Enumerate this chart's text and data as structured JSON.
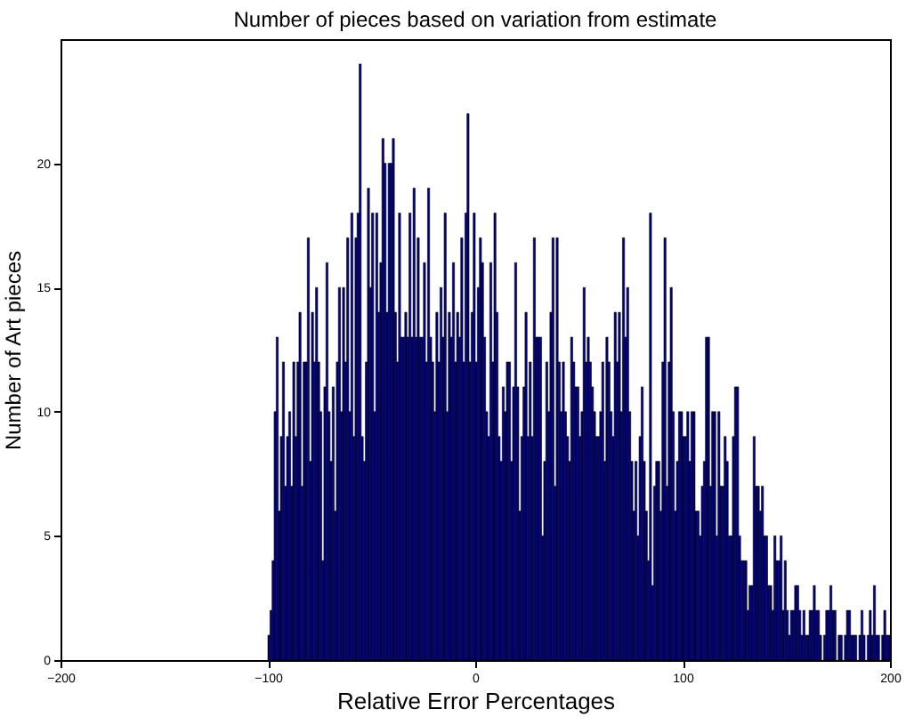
{
  "chart_data": {
    "type": "histogram",
    "title": "Number of pieces based on variation from estimate",
    "xlabel": "Relative Error Percentages",
    "ylabel": "Number of Art pieces",
    "color": "#00008b",
    "xlim": [
      -200,
      200
    ],
    "xticks": [
      -200,
      -100,
      0,
      100,
      200
    ],
    "ylim": [
      0,
      25
    ],
    "yticks": [
      0,
      5,
      10,
      15,
      20
    ],
    "bins": [
      -100,
      -99,
      -98,
      -97,
      -96,
      -95,
      -94,
      -93,
      -92,
      -91,
      -90,
      -89,
      -88,
      -87,
      -86,
      -85,
      -84,
      -83,
      -82,
      -81,
      -80,
      -79,
      -78,
      -77,
      -76,
      -75,
      -74,
      -73,
      -72,
      -71,
      -70,
      -69,
      -68,
      -67,
      -66,
      -65,
      -64,
      -63,
      -62,
      -61,
      -60,
      -59,
      -58,
      -57,
      -56,
      -55,
      -54,
      -53,
      -52,
      -51,
      -50,
      -49,
      -48,
      -47,
      -46,
      -45,
      -44,
      -43,
      -42,
      -41,
      -40,
      -39,
      -38,
      -37,
      -36,
      -35,
      -34,
      -33,
      -32,
      -31,
      -30,
      -29,
      -28,
      -27,
      -26,
      -25,
      -24,
      -23,
      -22,
      -21,
      -20,
      -19,
      -18,
      -17,
      -16,
      -15,
      -14,
      -13,
      -12,
      -11,
      -10,
      -9,
      -8,
      -7,
      -6,
      -5,
      -4,
      -3,
      -2,
      -1,
      0,
      1,
      2,
      3,
      4,
      5,
      6,
      7,
      8,
      9,
      10,
      11,
      12,
      13,
      14,
      15,
      16,
      17,
      18,
      19,
      20,
      21,
      22,
      23,
      24,
      25,
      26,
      27,
      28,
      29,
      30,
      31,
      32,
      33,
      34,
      35,
      36,
      37,
      38,
      39,
      40,
      41,
      42,
      43,
      44,
      45,
      46,
      47,
      48,
      49,
      50,
      51,
      52,
      53,
      54,
      55,
      56,
      57,
      58,
      59,
      60,
      61,
      62,
      63,
      64,
      65,
      66,
      67,
      68,
      69,
      70,
      71,
      72,
      73,
      74,
      75,
      76,
      77,
      78,
      79,
      80,
      81,
      82,
      83,
      84,
      85,
      86,
      87,
      88,
      89,
      90,
      91,
      92,
      93,
      94,
      95,
      96,
      97,
      98,
      99,
      100,
      101,
      102,
      103,
      104,
      105,
      106,
      107,
      108,
      109,
      110,
      111,
      112,
      113,
      114,
      115,
      116,
      117,
      118,
      119,
      120,
      121,
      122,
      123,
      124,
      125,
      126,
      127,
      128,
      129,
      130,
      131,
      132,
      133,
      134,
      135,
      136,
      137,
      138,
      139,
      140,
      141,
      142,
      143,
      144,
      145,
      146,
      147,
      148,
      149,
      150,
      151,
      152,
      153,
      154,
      155,
      156,
      157,
      158,
      159,
      160,
      161,
      162,
      163,
      164,
      165,
      166,
      167,
      168,
      169,
      170,
      171,
      172,
      173,
      174,
      175,
      176,
      177,
      178,
      179,
      180,
      181,
      182,
      183,
      184,
      185,
      186,
      187,
      188,
      189,
      190,
      191,
      192,
      193,
      194,
      195,
      196,
      197,
      198,
      199,
      200
    ],
    "values": [
      1,
      2,
      4,
      10,
      13,
      6,
      9,
      12,
      7,
      9,
      10,
      7,
      12,
      9,
      12,
      14,
      7,
      12,
      12,
      17,
      8,
      14,
      12,
      15,
      12,
      10,
      4,
      11,
      16,
      10,
      8,
      11,
      6,
      12,
      15,
      10,
      15,
      12,
      17,
      10,
      18,
      9,
      17,
      18,
      24,
      9,
      8,
      12,
      19,
      15,
      18,
      10,
      18,
      14,
      16,
      21,
      20,
      14,
      20,
      20,
      21,
      14,
      12,
      18,
      13,
      13,
      14,
      13,
      18,
      13,
      19,
      13,
      17,
      13,
      13,
      16,
      12,
      19,
      13,
      12,
      10,
      14,
      12,
      15,
      13,
      18,
      10,
      14,
      13,
      16,
      12,
      14,
      13,
      17,
      12,
      18,
      22,
      12,
      14,
      18,
      12,
      15,
      17,
      16,
      13,
      10,
      9,
      16,
      12,
      18,
      14,
      9,
      8,
      11,
      10,
      12,
      12,
      8,
      11,
      16,
      11,
      6,
      9,
      11,
      14,
      9,
      12,
      9,
      17,
      13,
      13,
      13,
      5,
      8,
      12,
      10,
      14,
      17,
      7,
      17,
      12,
      10,
      12,
      10,
      9,
      8,
      13,
      12,
      11,
      11,
      9,
      10,
      15,
      12,
      13,
      12,
      11,
      10,
      9,
      9,
      10,
      12,
      8,
      13,
      12,
      10,
      9,
      14,
      12,
      14,
      10,
      17,
      13,
      15,
      10,
      8,
      6,
      8,
      5,
      9,
      11,
      8,
      6,
      4,
      18,
      3,
      7,
      8,
      8,
      6,
      12,
      17,
      7,
      12,
      15,
      10,
      6,
      8,
      10,
      10,
      9,
      9,
      10,
      8,
      10,
      10,
      6,
      6,
      5,
      7,
      8,
      13,
      13,
      7,
      10,
      10,
      5,
      10,
      7,
      7,
      9,
      8,
      5,
      5,
      9,
      11,
      11,
      5,
      4,
      4,
      4,
      2,
      3,
      3,
      9,
      7,
      7,
      6,
      7,
      5,
      5,
      3,
      3,
      2,
      5,
      4,
      4,
      5,
      2,
      4,
      2,
      1,
      2,
      2,
      3,
      3,
      2,
      1,
      2,
      1,
      1,
      2,
      2,
      3,
      2,
      2,
      1,
      0,
      1,
      2,
      2,
      3,
      2,
      2,
      0,
      1,
      1,
      0,
      1,
      2,
      2,
      1,
      1,
      1,
      0,
      1,
      2,
      1,
      0,
      1,
      2,
      1,
      3,
      1,
      1,
      0,
      1,
      2,
      1,
      1
    ]
  }
}
